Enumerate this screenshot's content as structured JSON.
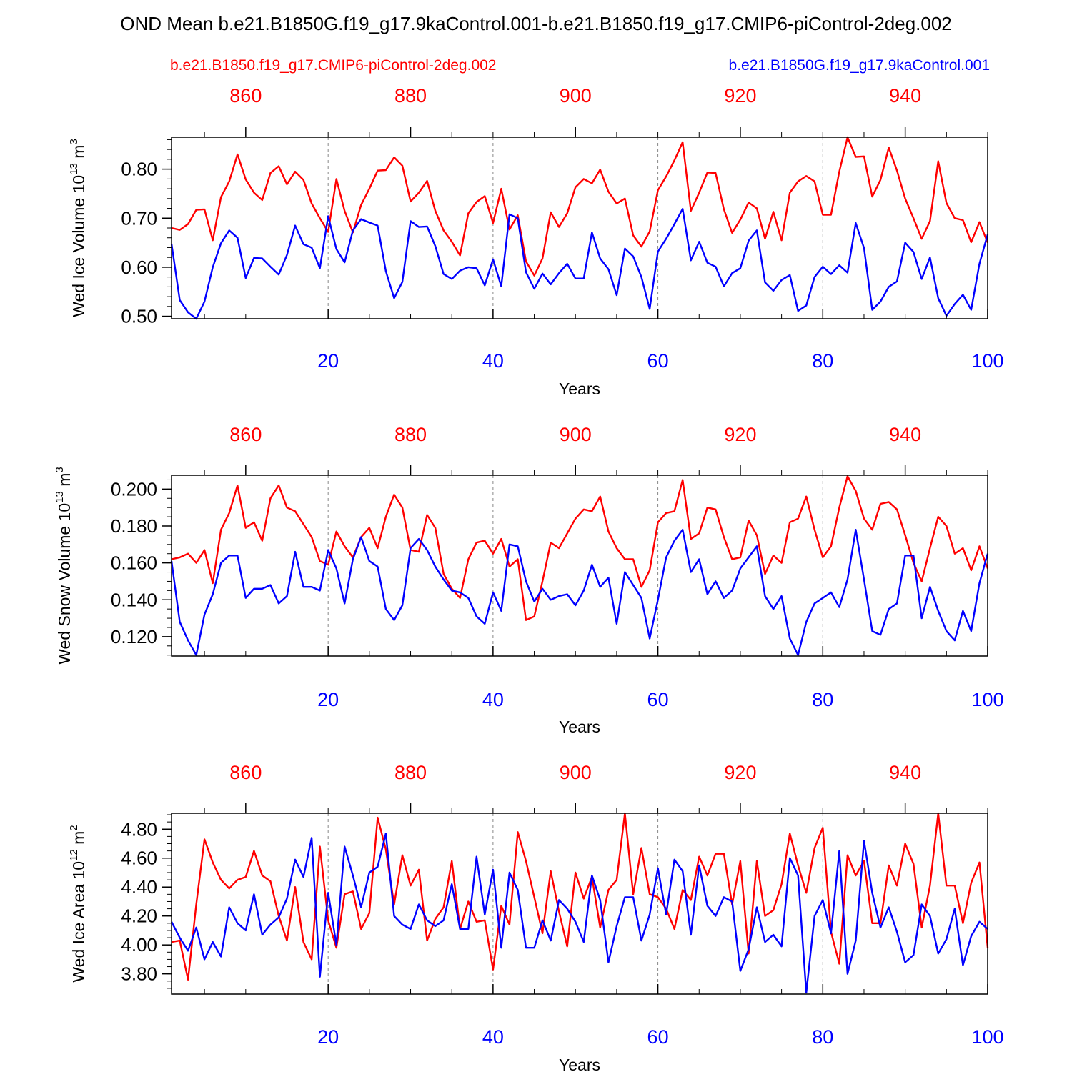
{
  "title": "OND Mean b.e21.B1850G.f19_g17.9kaControl.001-b.e21.B1850.f19_g17.CMIP6-piControl-2deg.002",
  "legend": {
    "red": "b.e21.B1850.f19_g17.CMIP6-piControl-2deg.002",
    "blue": "b.e21.B1850G.f19_g17.9kaControl.001"
  },
  "colors": {
    "red": "#ff0000",
    "blue": "#0000ff",
    "axis": "#000000",
    "grid": "#888888"
  },
  "chart_data": [
    {
      "type": "line",
      "ylabel_main": "Wed Ice Volume 10",
      "ylabel_exp": "13",
      "ylabel_unit": " m",
      "ylabel_unit_exp": "3",
      "xlabel": "Years",
      "xlim": [
        1,
        100
      ],
      "ylim": [
        0.495,
        0.865
      ],
      "yticks": [
        0.5,
        0.6,
        0.7,
        0.8
      ],
      "ytick_labels": [
        "0.50",
        "0.60",
        "0.70",
        "0.80"
      ],
      "yminor_step": 0.02,
      "xticks": [
        20,
        40,
        60,
        80,
        100
      ],
      "top_xticks": [
        860,
        880,
        900,
        920,
        940
      ],
      "top_offset": 850,
      "grid_x": [
        20,
        40,
        60,
        80
      ],
      "series": [
        {
          "name": "b.e21.B1850.f19_g17.CMIP6-piControl-2deg.002",
          "color": "red",
          "values": [
            0.68,
            0.676,
            0.688,
            0.717,
            0.718,
            0.655,
            0.743,
            0.775,
            0.83,
            0.779,
            0.752,
            0.737,
            0.792,
            0.806,
            0.769,
            0.795,
            0.778,
            0.73,
            0.7,
            0.672,
            0.78,
            0.715,
            0.671,
            0.727,
            0.76,
            0.797,
            0.798,
            0.824,
            0.807,
            0.734,
            0.752,
            0.776,
            0.715,
            0.675,
            0.652,
            0.624,
            0.71,
            0.733,
            0.745,
            0.69,
            0.76,
            0.677,
            0.706,
            0.612,
            0.583,
            0.618,
            0.712,
            0.682,
            0.71,
            0.763,
            0.78,
            0.771,
            0.799,
            0.754,
            0.73,
            0.74,
            0.665,
            0.642,
            0.673,
            0.757,
            0.785,
            0.818,
            0.855,
            0.715,
            0.752,
            0.793,
            0.792,
            0.718,
            0.67,
            0.697,
            0.732,
            0.72,
            0.658,
            0.713,
            0.655,
            0.752,
            0.775,
            0.786,
            0.775,
            0.707,
            0.707,
            0.795,
            0.865,
            0.825,
            0.826,
            0.744,
            0.778,
            0.844,
            0.797,
            0.74,
            0.7,
            0.658,
            0.694,
            0.816,
            0.731,
            0.7,
            0.696,
            0.651,
            0.692,
            0.65
          ]
        },
        {
          "name": "b.e21.B1850G.f19_g17.9kaControl.001",
          "color": "blue",
          "values": [
            0.648,
            0.533,
            0.508,
            0.495,
            0.53,
            0.6,
            0.649,
            0.675,
            0.66,
            0.578,
            0.619,
            0.618,
            0.601,
            0.585,
            0.625,
            0.685,
            0.647,
            0.64,
            0.598,
            0.704,
            0.637,
            0.61,
            0.675,
            0.698,
            0.691,
            0.685,
            0.592,
            0.537,
            0.57,
            0.694,
            0.682,
            0.683,
            0.643,
            0.586,
            0.576,
            0.593,
            0.6,
            0.598,
            0.563,
            0.616,
            0.561,
            0.708,
            0.7,
            0.59,
            0.556,
            0.587,
            0.565,
            0.588,
            0.607,
            0.577,
            0.577,
            0.671,
            0.618,
            0.596,
            0.543,
            0.638,
            0.622,
            0.58,
            0.515,
            0.632,
            0.658,
            0.688,
            0.719,
            0.614,
            0.652,
            0.609,
            0.601,
            0.561,
            0.588,
            0.598,
            0.654,
            0.675,
            0.569,
            0.552,
            0.574,
            0.584,
            0.511,
            0.522,
            0.58,
            0.601,
            0.586,
            0.604,
            0.589,
            0.69,
            0.639,
            0.513,
            0.53,
            0.56,
            0.571,
            0.65,
            0.631,
            0.576,
            0.62,
            0.537,
            0.501,
            0.525,
            0.544,
            0.513,
            0.607,
            0.667
          ]
        }
      ]
    },
    {
      "type": "line",
      "ylabel_main": "Wed Snow Volume 10",
      "ylabel_exp": "13",
      "ylabel_unit": " m",
      "ylabel_unit_exp": "3",
      "xlabel": "Years",
      "xlim": [
        1,
        100
      ],
      "ylim": [
        0.1095,
        0.2075
      ],
      "yticks": [
        0.12,
        0.14,
        0.16,
        0.18,
        0.2
      ],
      "ytick_labels": [
        "0.120",
        "0.140",
        "0.160",
        "0.180",
        "0.200"
      ],
      "yminor_step": 0.005,
      "xticks": [
        20,
        40,
        60,
        80,
        100
      ],
      "top_xticks": [
        860,
        880,
        900,
        920,
        940
      ],
      "top_offset": 850,
      "grid_x": [
        20,
        40,
        60,
        80
      ],
      "series": [
        {
          "name": "b.e21.B1850.f19_g17.CMIP6-piControl-2deg.002",
          "color": "red",
          "values": [
            0.162,
            0.163,
            0.165,
            0.16,
            0.167,
            0.149,
            0.178,
            0.187,
            0.202,
            0.179,
            0.182,
            0.172,
            0.195,
            0.202,
            0.19,
            0.188,
            0.181,
            0.174,
            0.161,
            0.159,
            0.177,
            0.169,
            0.163,
            0.174,
            0.179,
            0.168,
            0.185,
            0.197,
            0.19,
            0.167,
            0.166,
            0.186,
            0.179,
            0.154,
            0.146,
            0.141,
            0.162,
            0.171,
            0.172,
            0.165,
            0.173,
            0.158,
            0.162,
            0.129,
            0.131,
            0.15,
            0.171,
            0.168,
            0.176,
            0.184,
            0.189,
            0.188,
            0.196,
            0.177,
            0.168,
            0.162,
            0.162,
            0.147,
            0.156,
            0.182,
            0.187,
            0.188,
            0.205,
            0.173,
            0.176,
            0.19,
            0.189,
            0.174,
            0.162,
            0.163,
            0.183,
            0.175,
            0.154,
            0.164,
            0.16,
            0.182,
            0.184,
            0.196,
            0.178,
            0.163,
            0.169,
            0.19,
            0.207,
            0.199,
            0.184,
            0.178,
            0.192,
            0.193,
            0.189,
            0.175,
            0.16,
            0.15,
            0.168,
            0.185,
            0.18,
            0.165,
            0.168,
            0.156,
            0.169,
            0.157
          ]
        },
        {
          "name": "b.e21.B1850G.f19_g17.9kaControl.001",
          "color": "blue",
          "values": [
            0.161,
            0.128,
            0.118,
            0.11,
            0.132,
            0.143,
            0.16,
            0.164,
            0.164,
            0.141,
            0.146,
            0.146,
            0.148,
            0.138,
            0.142,
            0.166,
            0.147,
            0.147,
            0.145,
            0.167,
            0.157,
            0.138,
            0.162,
            0.174,
            0.161,
            0.158,
            0.135,
            0.129,
            0.137,
            0.168,
            0.173,
            0.167,
            0.158,
            0.151,
            0.145,
            0.144,
            0.141,
            0.131,
            0.127,
            0.144,
            0.134,
            0.17,
            0.169,
            0.15,
            0.139,
            0.146,
            0.14,
            0.142,
            0.143,
            0.137,
            0.145,
            0.159,
            0.147,
            0.152,
            0.127,
            0.155,
            0.148,
            0.141,
            0.119,
            0.14,
            0.163,
            0.172,
            0.178,
            0.155,
            0.162,
            0.143,
            0.15,
            0.141,
            0.145,
            0.157,
            0.163,
            0.169,
            0.142,
            0.135,
            0.142,
            0.119,
            0.11,
            0.128,
            0.138,
            0.141,
            0.144,
            0.136,
            0.151,
            0.178,
            0.151,
            0.123,
            0.121,
            0.135,
            0.138,
            0.164,
            0.164,
            0.13,
            0.147,
            0.134,
            0.123,
            0.118,
            0.134,
            0.123,
            0.149,
            0.165
          ]
        }
      ]
    },
    {
      "type": "line",
      "ylabel_main": "Wed Ice Area 10",
      "ylabel_exp": "12",
      "ylabel_unit": " m",
      "ylabel_unit_exp": "2",
      "xlabel": "Years",
      "xlim": [
        1,
        100
      ],
      "ylim": [
        3.66,
        4.91
      ],
      "yticks": [
        3.8,
        4.0,
        4.2,
        4.4,
        4.6,
        4.8
      ],
      "ytick_labels": [
        "3.80",
        "4.00",
        "4.20",
        "4.40",
        "4.60",
        "4.80"
      ],
      "yminor_step": 0.05,
      "xticks": [
        20,
        40,
        60,
        80,
        100
      ],
      "top_xticks": [
        860,
        880,
        900,
        920,
        940
      ],
      "top_offset": 850,
      "grid_x": [
        20,
        40,
        60,
        80
      ],
      "series": [
        {
          "name": "b.e21.B1850.f19_g17.CMIP6-piControl-2deg.002",
          "color": "red",
          "values": [
            4.02,
            4.03,
            3.76,
            4.28,
            4.73,
            4.57,
            4.45,
            4.39,
            4.45,
            4.47,
            4.65,
            4.48,
            4.44,
            4.2,
            4.03,
            4.4,
            4.02,
            3.9,
            4.68,
            4.17,
            3.98,
            4.35,
            4.37,
            4.11,
            4.22,
            4.88,
            4.66,
            4.28,
            4.62,
            4.41,
            4.52,
            4.03,
            4.18,
            4.26,
            4.58,
            4.11,
            4.3,
            4.16,
            4.17,
            3.83,
            4.27,
            4.14,
            4.78,
            4.58,
            4.33,
            4.08,
            4.51,
            4.23,
            3.99,
            4.5,
            4.32,
            4.47,
            4.12,
            4.38,
            4.45,
            4.91,
            4.35,
            4.67,
            4.35,
            4.33,
            4.25,
            4.11,
            4.38,
            4.31,
            4.61,
            4.48,
            4.63,
            4.63,
            4.28,
            4.58,
            3.94,
            4.58,
            4.2,
            4.24,
            4.42,
            4.77,
            4.55,
            4.36,
            4.67,
            4.81,
            4.09,
            3.87,
            4.62,
            4.48,
            4.58,
            4.15,
            4.15,
            4.55,
            4.41,
            4.7,
            4.56,
            4.12,
            4.41,
            4.91,
            4.41,
            4.41,
            4.15,
            4.43,
            4.57,
            3.98
          ]
        },
        {
          "name": "b.e21.B1850G.f19_g17.9kaControl.001",
          "color": "blue",
          "values": [
            4.16,
            4.05,
            3.96,
            4.12,
            3.9,
            4.02,
            3.92,
            4.26,
            4.15,
            4.1,
            4.35,
            4.07,
            4.14,
            4.19,
            4.32,
            4.59,
            4.47,
            4.74,
            3.78,
            4.36,
            4.0,
            4.68,
            4.48,
            4.26,
            4.5,
            4.54,
            4.77,
            4.2,
            4.14,
            4.11,
            4.28,
            4.17,
            4.13,
            4.17,
            4.42,
            4.11,
            4.11,
            4.61,
            4.21,
            4.52,
            3.98,
            4.5,
            4.38,
            3.98,
            3.98,
            4.17,
            4.03,
            4.31,
            4.25,
            4.16,
            4.02,
            4.48,
            4.31,
            3.88,
            4.13,
            4.33,
            4.33,
            4.03,
            4.21,
            4.53,
            4.21,
            4.59,
            4.51,
            4.07,
            4.55,
            4.27,
            4.2,
            4.33,
            4.3,
            3.82,
            3.97,
            4.26,
            4.02,
            4.07,
            3.99,
            4.6,
            4.48,
            3.67,
            4.2,
            4.31,
            4.08,
            4.65,
            3.8,
            4.03,
            4.72,
            4.36,
            4.12,
            4.26,
            4.09,
            3.88,
            3.93,
            4.28,
            4.2,
            3.94,
            4.04,
            4.25,
            3.86,
            4.06,
            4.16,
            4.11
          ]
        }
      ]
    }
  ]
}
